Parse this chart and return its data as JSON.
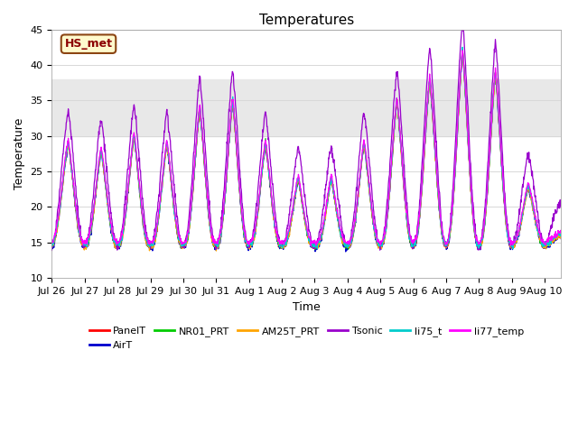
{
  "title": "Temperatures",
  "xlabel": "Time",
  "ylabel": "Temperature",
  "ylim": [
    10,
    45
  ],
  "yticks": [
    10,
    15,
    20,
    25,
    30,
    35,
    40,
    45
  ],
  "annotation_text": "HS_met",
  "annotation_color": "#8B0000",
  "annotation_bg": "#FFFACD",
  "annotation_border": "#8B4513",
  "series_colors": {
    "PanelT": "#FF0000",
    "AirT": "#0000CD",
    "NR01_PRT": "#00CC00",
    "AM25T_PRT": "#FFA500",
    "Tsonic": "#9900CC",
    "li75_t": "#00CCCC",
    "li77_temp": "#FF00FF"
  },
  "x_tick_labels": [
    "Jul 26",
    "Jul 27",
    "Jul 28",
    "Jul 29",
    "Jul 30",
    "Jul 31",
    "Aug 1",
    "Aug 2",
    "Aug 3",
    "Aug 4",
    "Aug 5",
    "Aug 6",
    "Aug 7",
    "Aug 8",
    "Aug 9",
    "Aug 10"
  ],
  "n_days": 15.5,
  "points_per_day": 96,
  "background_band_low": 30,
  "background_band_high": 38,
  "grid_color": "#d8d8d8",
  "bg_band_color": "#e8e8e8"
}
